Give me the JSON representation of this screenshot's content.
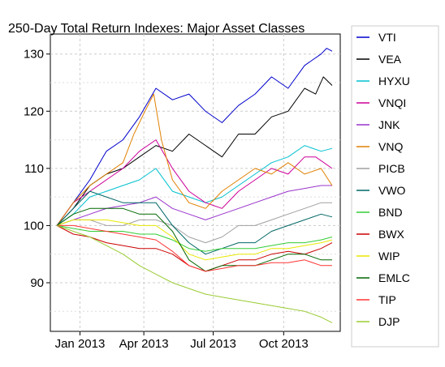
{
  "chart_data": {
    "type": "line",
    "title": "250-Day Total Return Indexes: Major Asset Classes",
    "xlabel": "",
    "ylabel": "",
    "ylim": [
      81.5,
      133.5
    ],
    "y_ticks": [
      90,
      100,
      110,
      120,
      130
    ],
    "x_ticks": [
      {
        "label": "Jan 2013",
        "x": 21
      },
      {
        "label": "Apr 2013",
        "x": 79
      },
      {
        "label": "Jul 2013",
        "x": 142
      },
      {
        "label": "Oct 2013",
        "x": 206
      }
    ],
    "x_range": [
      0,
      250
    ],
    "grid": true,
    "legend_position": "right",
    "series": [
      {
        "name": "VTI",
        "color": "#0000cc",
        "values": [
          [
            0,
            100
          ],
          [
            15,
            104
          ],
          [
            30,
            108
          ],
          [
            45,
            113
          ],
          [
            60,
            115
          ],
          [
            75,
            119
          ],
          [
            90,
            124
          ],
          [
            105,
            122
          ],
          [
            120,
            123
          ],
          [
            135,
            120
          ],
          [
            150,
            118
          ],
          [
            165,
            121
          ],
          [
            180,
            123
          ],
          [
            195,
            126
          ],
          [
            210,
            124
          ],
          [
            225,
            128
          ],
          [
            240,
            130
          ],
          [
            245,
            131
          ],
          [
            250,
            130.5
          ]
        ]
      },
      {
        "name": "VEA",
        "color": "#000000",
        "values": [
          [
            0,
            100
          ],
          [
            15,
            103
          ],
          [
            30,
            107
          ],
          [
            45,
            109
          ],
          [
            60,
            110
          ],
          [
            75,
            112
          ],
          [
            90,
            114
          ],
          [
            105,
            113
          ],
          [
            120,
            116
          ],
          [
            135,
            114
          ],
          [
            150,
            112
          ],
          [
            165,
            116
          ],
          [
            180,
            116
          ],
          [
            195,
            119
          ],
          [
            210,
            120
          ],
          [
            225,
            124
          ],
          [
            235,
            123
          ],
          [
            242,
            126
          ],
          [
            250,
            124.5
          ]
        ]
      },
      {
        "name": "HYXU",
        "color": "#00c0d0",
        "values": [
          [
            0,
            100
          ],
          [
            15,
            102
          ],
          [
            30,
            105
          ],
          [
            45,
            106
          ],
          [
            60,
            107
          ],
          [
            75,
            108
          ],
          [
            90,
            110
          ],
          [
            105,
            106
          ],
          [
            120,
            105
          ],
          [
            135,
            104
          ],
          [
            150,
            105
          ],
          [
            165,
            107
          ],
          [
            180,
            109
          ],
          [
            195,
            111
          ],
          [
            210,
            112
          ],
          [
            225,
            114
          ],
          [
            240,
            113
          ],
          [
            250,
            113.5
          ]
        ]
      },
      {
        "name": "VNQI",
        "color": "#cc0099",
        "values": [
          [
            0,
            100
          ],
          [
            15,
            104
          ],
          [
            30,
            106
          ],
          [
            45,
            108
          ],
          [
            60,
            110
          ],
          [
            75,
            113
          ],
          [
            90,
            115
          ],
          [
            105,
            110
          ],
          [
            120,
            106
          ],
          [
            135,
            104
          ],
          [
            150,
            103
          ],
          [
            165,
            106
          ],
          [
            180,
            108
          ],
          [
            195,
            110
          ],
          [
            210,
            109
          ],
          [
            225,
            112
          ],
          [
            235,
            112
          ],
          [
            250,
            110
          ]
        ]
      },
      {
        "name": "JNK",
        "color": "#9933cc",
        "values": [
          [
            0,
            100
          ],
          [
            15,
            101
          ],
          [
            30,
            102
          ],
          [
            45,
            103
          ],
          [
            60,
            103.5
          ],
          [
            75,
            104
          ],
          [
            90,
            105
          ],
          [
            105,
            103
          ],
          [
            120,
            102
          ],
          [
            135,
            101
          ],
          [
            150,
            102
          ],
          [
            165,
            103
          ],
          [
            180,
            104
          ],
          [
            195,
            105
          ],
          [
            210,
            106
          ],
          [
            225,
            106.5
          ],
          [
            240,
            107
          ],
          [
            250,
            107
          ]
        ]
      },
      {
        "name": "VNQ",
        "color": "#e08000",
        "values": [
          [
            0,
            100
          ],
          [
            15,
            104
          ],
          [
            30,
            107
          ],
          [
            45,
            109
          ],
          [
            60,
            111
          ],
          [
            70,
            116
          ],
          [
            80,
            120
          ],
          [
            88,
            123
          ],
          [
            95,
            115
          ],
          [
            105,
            108
          ],
          [
            120,
            104
          ],
          [
            135,
            103
          ],
          [
            150,
            106
          ],
          [
            165,
            108
          ],
          [
            180,
            110
          ],
          [
            195,
            109
          ],
          [
            210,
            111
          ],
          [
            225,
            109
          ],
          [
            240,
            110
          ],
          [
            250,
            107
          ]
        ]
      },
      {
        "name": "PICB",
        "color": "#a0a0a0",
        "values": [
          [
            0,
            100
          ],
          [
            15,
            101
          ],
          [
            30,
            101
          ],
          [
            45,
            100
          ],
          [
            60,
            100
          ],
          [
            75,
            101
          ],
          [
            90,
            101
          ],
          [
            105,
            100
          ],
          [
            120,
            98
          ],
          [
            135,
            97
          ],
          [
            150,
            98
          ],
          [
            165,
            100
          ],
          [
            180,
            100
          ],
          [
            195,
            101
          ],
          [
            210,
            102
          ],
          [
            225,
            103
          ],
          [
            240,
            104
          ],
          [
            250,
            104
          ]
        ]
      },
      {
        "name": "VWO",
        "color": "#006666",
        "values": [
          [
            0,
            100
          ],
          [
            15,
            103
          ],
          [
            30,
            106
          ],
          [
            45,
            105
          ],
          [
            60,
            104
          ],
          [
            75,
            104
          ],
          [
            90,
            104
          ],
          [
            105,
            100
          ],
          [
            120,
            97
          ],
          [
            135,
            95
          ],
          [
            150,
            96
          ],
          [
            165,
            97
          ],
          [
            180,
            97
          ],
          [
            195,
            99
          ],
          [
            210,
            100
          ],
          [
            225,
            101
          ],
          [
            240,
            102
          ],
          [
            250,
            101.5
          ]
        ]
      },
      {
        "name": "BND",
        "color": "#33cc33",
        "values": [
          [
            0,
            100
          ],
          [
            15,
            99.5
          ],
          [
            30,
            99
          ],
          [
            45,
            99
          ],
          [
            60,
            99
          ],
          [
            75,
            98.5
          ],
          [
            90,
            98.5
          ],
          [
            105,
            97.5
          ],
          [
            120,
            96
          ],
          [
            135,
            95.5
          ],
          [
            150,
            96
          ],
          [
            165,
            96
          ],
          [
            180,
            96
          ],
          [
            195,
            96.5
          ],
          [
            210,
            97
          ],
          [
            225,
            97
          ],
          [
            240,
            97.5
          ],
          [
            250,
            98
          ]
        ]
      },
      {
        "name": "BWX",
        "color": "#cc0000",
        "values": [
          [
            0,
            100
          ],
          [
            15,
            98.5
          ],
          [
            30,
            98
          ],
          [
            45,
            97
          ],
          [
            60,
            96.5
          ],
          [
            75,
            96
          ],
          [
            90,
            96
          ],
          [
            105,
            95
          ],
          [
            120,
            93
          ],
          [
            135,
            92
          ],
          [
            150,
            93
          ],
          [
            165,
            94
          ],
          [
            180,
            94
          ],
          [
            195,
            95
          ],
          [
            210,
            95.5
          ],
          [
            225,
            95
          ],
          [
            240,
            96
          ],
          [
            250,
            97
          ]
        ]
      },
      {
        "name": "WIP",
        "color": "#e8e800",
        "values": [
          [
            0,
            100
          ],
          [
            15,
            101
          ],
          [
            30,
            101
          ],
          [
            45,
            101
          ],
          [
            60,
            100.5
          ],
          [
            75,
            100
          ],
          [
            90,
            100
          ],
          [
            105,
            98
          ],
          [
            120,
            95
          ],
          [
            135,
            94
          ],
          [
            150,
            94.5
          ],
          [
            165,
            95
          ],
          [
            180,
            95
          ],
          [
            195,
            96
          ],
          [
            210,
            96
          ],
          [
            225,
            96.5
          ],
          [
            240,
            97
          ],
          [
            250,
            97.5
          ]
        ]
      },
      {
        "name": "EMLC",
        "color": "#006600",
        "values": [
          [
            0,
            100
          ],
          [
            15,
            102
          ],
          [
            30,
            103
          ],
          [
            45,
            103
          ],
          [
            60,
            103
          ],
          [
            75,
            102
          ],
          [
            90,
            102
          ],
          [
            105,
            99
          ],
          [
            120,
            94
          ],
          [
            135,
            92
          ],
          [
            150,
            93
          ],
          [
            165,
            93
          ],
          [
            180,
            93
          ],
          [
            195,
            94
          ],
          [
            210,
            95
          ],
          [
            225,
            95
          ],
          [
            240,
            94
          ],
          [
            250,
            94
          ]
        ]
      },
      {
        "name": "TIP",
        "color": "#ff3333",
        "values": [
          [
            0,
            100
          ],
          [
            15,
            100
          ],
          [
            30,
            99.5
          ],
          [
            45,
            99
          ],
          [
            60,
            98.5
          ],
          [
            75,
            98
          ],
          [
            90,
            97.5
          ],
          [
            105,
            95.5
          ],
          [
            120,
            93
          ],
          [
            135,
            92
          ],
          [
            150,
            92.5
          ],
          [
            165,
            93
          ],
          [
            180,
            93
          ],
          [
            195,
            93.5
          ],
          [
            210,
            93.5
          ],
          [
            225,
            94
          ],
          [
            240,
            93
          ],
          [
            250,
            93
          ]
        ]
      },
      {
        "name": "DJP",
        "color": "#99cc33",
        "values": [
          [
            0,
            100
          ],
          [
            15,
            99
          ],
          [
            30,
            98
          ],
          [
            45,
            96.5
          ],
          [
            60,
            95
          ],
          [
            75,
            93
          ],
          [
            90,
            91.5
          ],
          [
            105,
            90
          ],
          [
            120,
            89
          ],
          [
            135,
            88
          ],
          [
            150,
            87.5
          ],
          [
            165,
            87
          ],
          [
            180,
            86.5
          ],
          [
            195,
            86
          ],
          [
            210,
            85.5
          ],
          [
            225,
            85
          ],
          [
            240,
            84
          ],
          [
            250,
            83
          ]
        ]
      }
    ]
  }
}
